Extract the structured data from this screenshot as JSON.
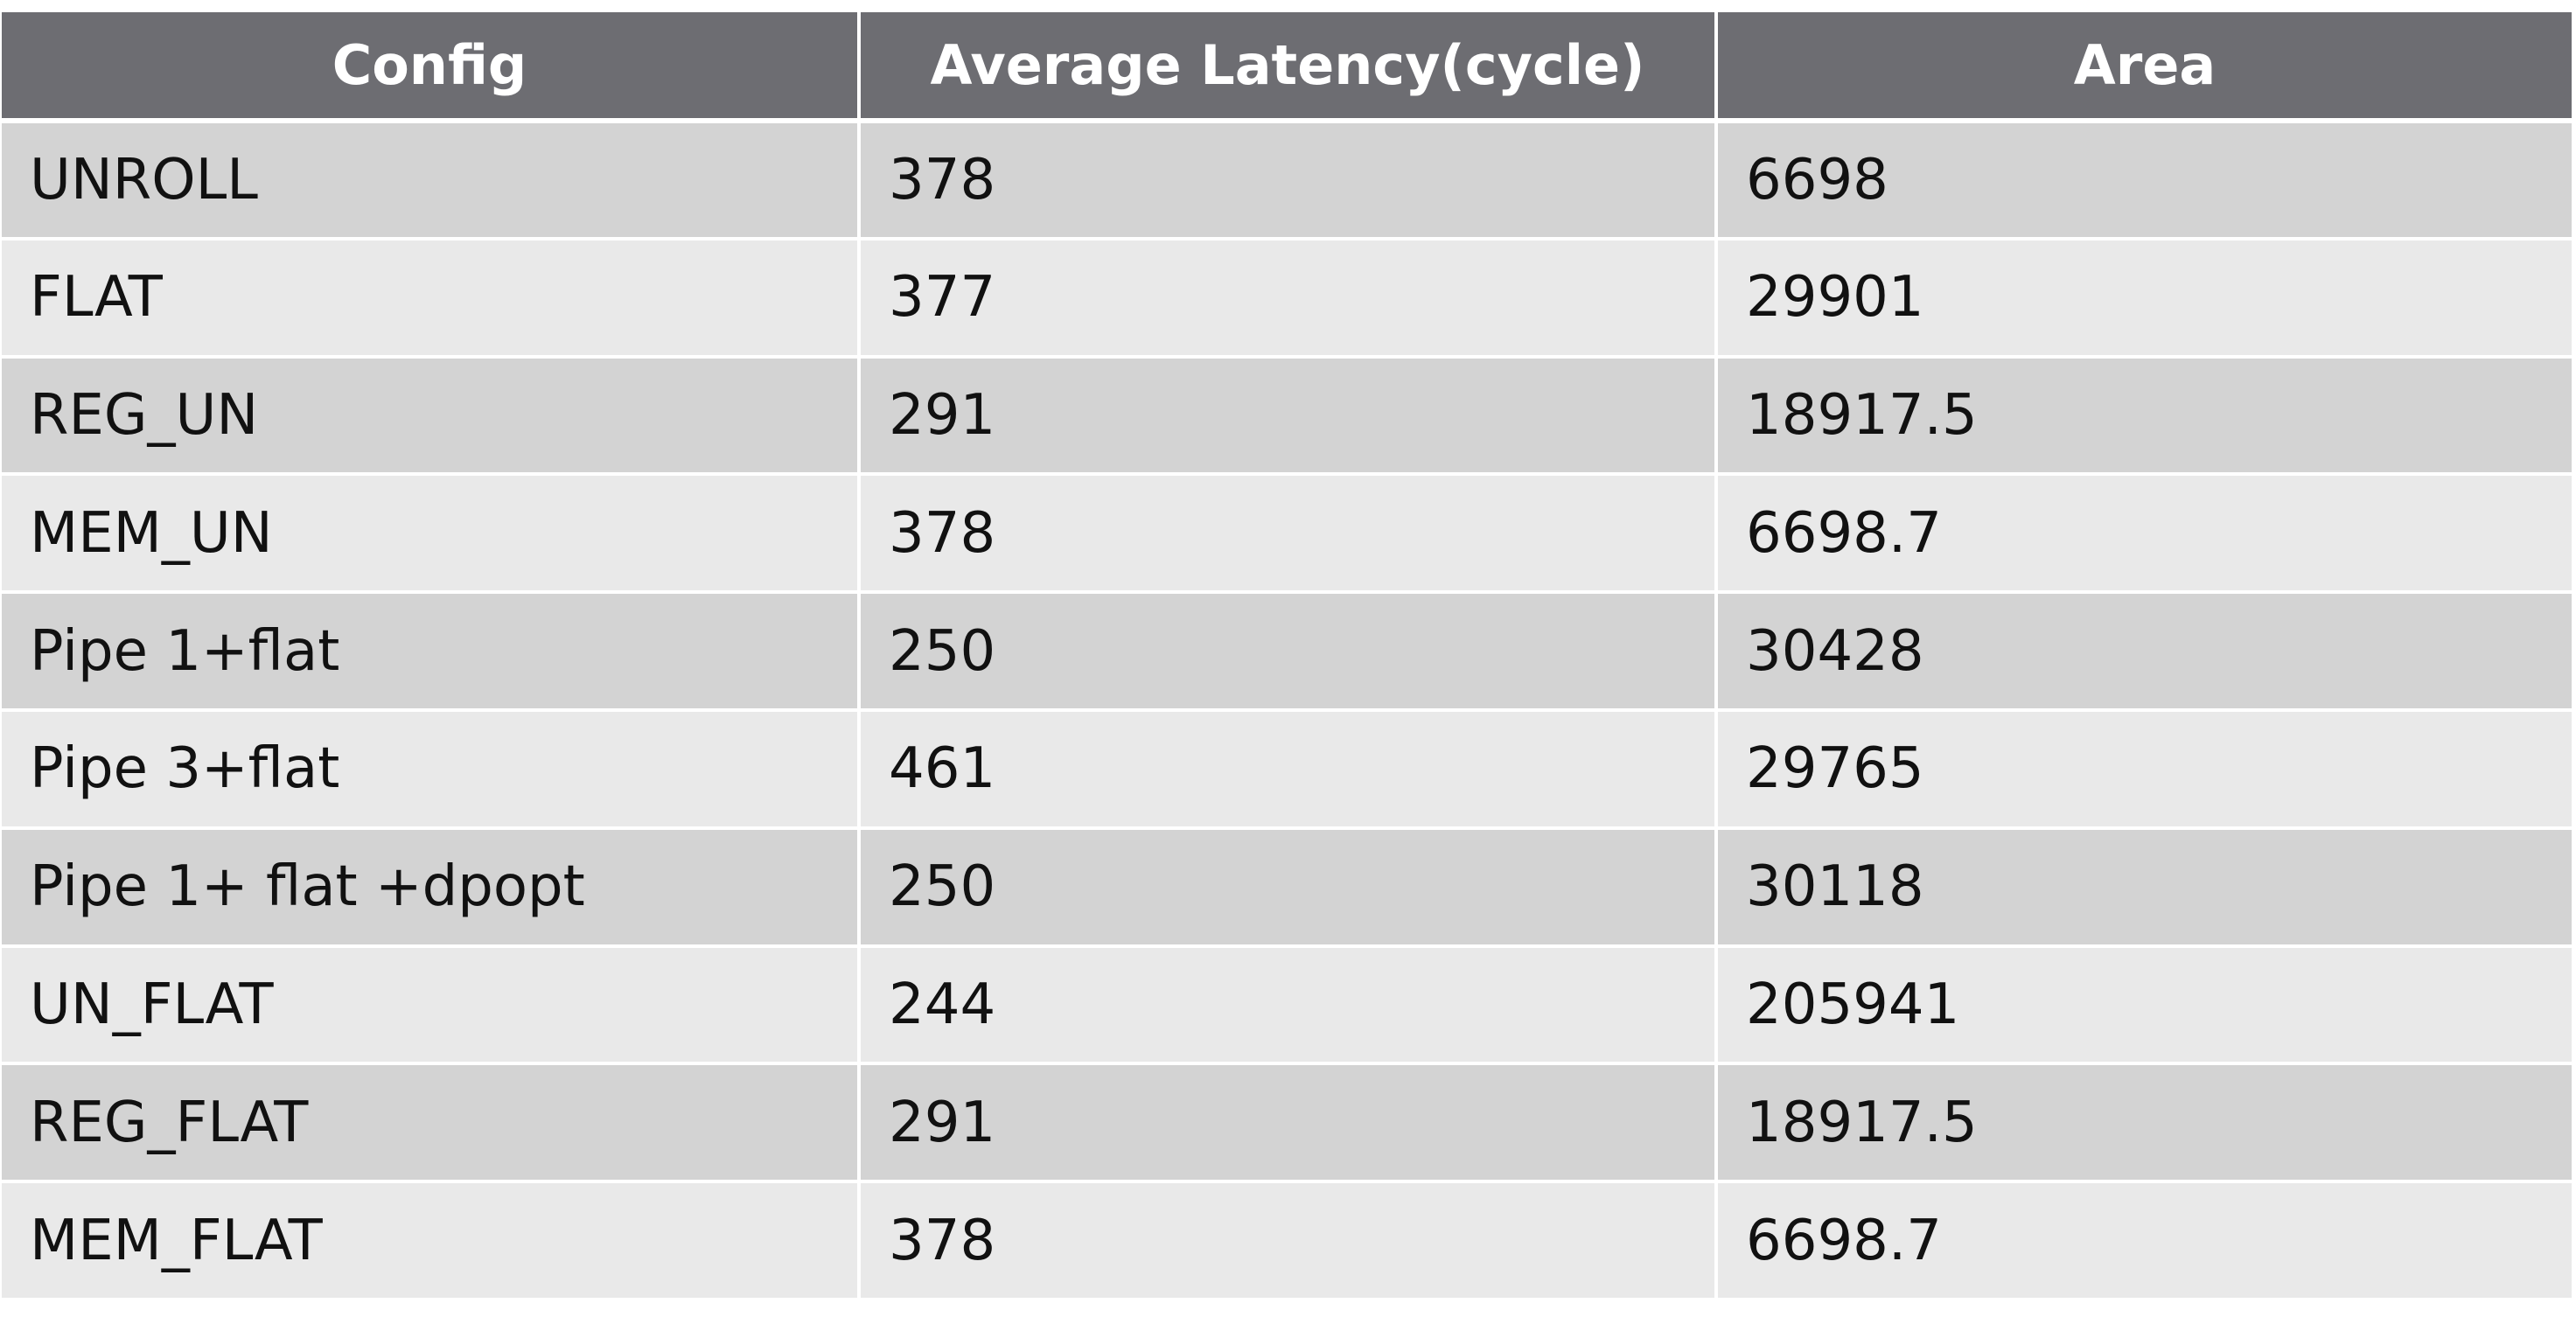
{
  "chart_data": {
    "type": "table",
    "columns": [
      "Config",
      "Average Latency(cycle)",
      "Area"
    ],
    "rows": [
      [
        "UNROLL",
        "378",
        "6698"
      ],
      [
        "FLAT",
        "377",
        "29901"
      ],
      [
        "REG_UN",
        "291",
        "18917.5"
      ],
      [
        "MEM_UN",
        "378",
        "6698.7"
      ],
      [
        "Pipe 1+flat",
        "250",
        "30428"
      ],
      [
        "Pipe 3+flat",
        "461",
        "29765"
      ],
      [
        "Pipe 1+ flat +dpopt",
        "250",
        "30118"
      ],
      [
        "UN_FLAT",
        "244",
        "205941"
      ],
      [
        "REG_FLAT",
        "291",
        "18917.5"
      ],
      [
        "MEM_FLAT",
        "378",
        "6698.7"
      ]
    ],
    "colors": {
      "header_bg": "#6d6d72",
      "header_text": "#ffffff",
      "row_odd": "#d3d3d3",
      "row_even": "#e9e9e9"
    }
  }
}
